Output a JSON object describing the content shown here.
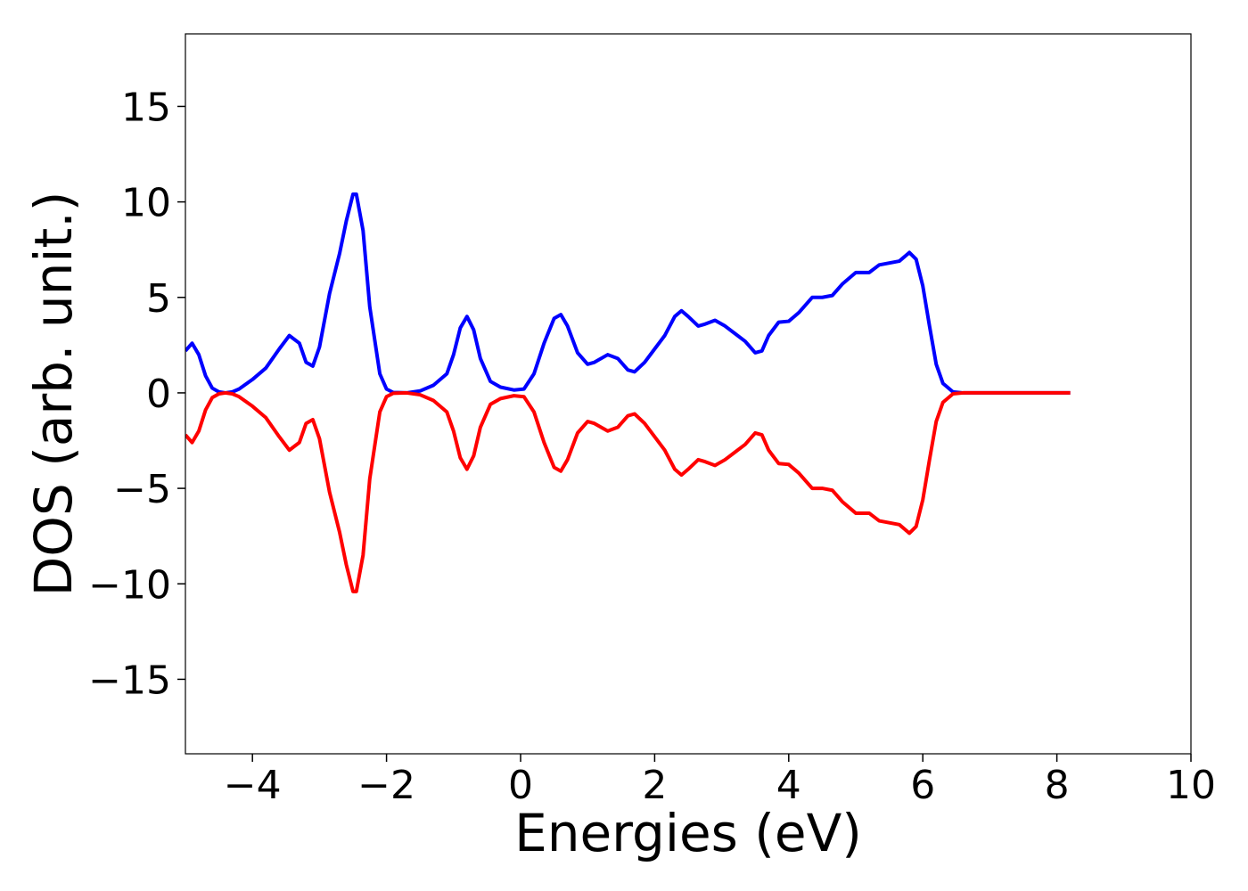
{
  "chart_data": {
    "type": "line",
    "xlabel": "Energies (eV)",
    "ylabel": "DOS (arb. unit.)",
    "x": [
      -5,
      -4.9,
      -4.8,
      -4.7,
      -4.6,
      -4.5,
      -4.4,
      -4.3,
      -4.2,
      -4.0,
      -3.8,
      -3.6,
      -3.45,
      -3.3,
      -3.2,
      -3.1,
      -3.0,
      -2.85,
      -2.7,
      -2.6,
      -2.5,
      -2.45,
      -2.35,
      -2.25,
      -2.1,
      -2.0,
      -1.9,
      -1.7,
      -1.5,
      -1.3,
      -1.1,
      -1.0,
      -0.9,
      -0.8,
      -0.7,
      -0.6,
      -0.45,
      -0.3,
      -0.1,
      0.05,
      0.2,
      0.35,
      0.5,
      0.6,
      0.7,
      0.85,
      1.0,
      1.1,
      1.3,
      1.45,
      1.6,
      1.7,
      1.85,
      2.0,
      2.15,
      2.3,
      2.4,
      2.5,
      2.65,
      2.75,
      2.9,
      3.05,
      3.2,
      3.35,
      3.5,
      3.6,
      3.7,
      3.85,
      4.0,
      4.15,
      4.35,
      4.5,
      4.65,
      4.8,
      5.0,
      5.2,
      5.35,
      5.5,
      5.65,
      5.8,
      5.9,
      6.0,
      6.1,
      6.2,
      6.3,
      6.45,
      6.6,
      8.2
    ],
    "series": [
      {
        "color": "#0000ff",
        "values": [
          2.2,
          2.6,
          2.0,
          0.9,
          0.25,
          0.05,
          0.0,
          0.05,
          0.2,
          0.7,
          1.3,
          2.3,
          3.0,
          2.6,
          1.6,
          1.4,
          2.4,
          5.2,
          7.3,
          9.0,
          10.4,
          10.4,
          8.5,
          4.5,
          1.0,
          0.2,
          0.02,
          0.0,
          0.1,
          0.4,
          1.0,
          2.0,
          3.4,
          4.0,
          3.3,
          1.8,
          0.6,
          0.3,
          0.15,
          0.2,
          1.0,
          2.6,
          3.9,
          4.1,
          3.5,
          2.1,
          1.5,
          1.6,
          2.0,
          1.8,
          1.2,
          1.1,
          1.6,
          2.3,
          3.0,
          4.0,
          4.3,
          4.0,
          3.5,
          3.6,
          3.8,
          3.5,
          3.1,
          2.7,
          2.1,
          2.2,
          3.0,
          3.7,
          3.75,
          4.2,
          5.0,
          5.0,
          5.1,
          5.7,
          6.3,
          6.3,
          6.7,
          6.8,
          6.9,
          7.35,
          7.0,
          5.6,
          3.5,
          1.5,
          0.5,
          0.05,
          0.0,
          0.0
        ]
      },
      {
        "color": "#ff0000",
        "values": [
          -2.2,
          -2.6,
          -2.0,
          -0.9,
          -0.25,
          -0.05,
          0.0,
          -0.05,
          -0.2,
          -0.7,
          -1.3,
          -2.3,
          -3.0,
          -2.6,
          -1.6,
          -1.4,
          -2.4,
          -5.2,
          -7.3,
          -9.0,
          -10.4,
          -10.4,
          -8.5,
          -4.5,
          -1.0,
          -0.2,
          -0.02,
          0.0,
          -0.1,
          -0.4,
          -1.0,
          -2.0,
          -3.4,
          -4.0,
          -3.3,
          -1.8,
          -0.6,
          -0.3,
          -0.15,
          -0.2,
          -1.0,
          -2.6,
          -3.9,
          -4.1,
          -3.5,
          -2.1,
          -1.5,
          -1.6,
          -2.0,
          -1.8,
          -1.2,
          -1.1,
          -1.6,
          -2.3,
          -3.0,
          -4.0,
          -4.3,
          -4.0,
          -3.5,
          -3.6,
          -3.8,
          -3.5,
          -3.1,
          -2.7,
          -2.1,
          -2.2,
          -3.0,
          -3.7,
          -3.75,
          -4.2,
          -5.0,
          -5.0,
          -5.1,
          -5.7,
          -6.3,
          -6.3,
          -6.7,
          -6.8,
          -6.9,
          -7.35,
          -7.0,
          -5.6,
          -3.5,
          -1.5,
          -0.5,
          -0.05,
          0.0,
          0.0
        ]
      }
    ],
    "xlim": [
      -5,
      10
    ],
    "xticks": [
      {
        "value": -4,
        "label": "−4"
      },
      {
        "value": -2,
        "label": "−2"
      },
      0,
      2,
      4,
      6,
      8,
      10
    ],
    "ylim": [
      -18.9,
      18.8
    ],
    "yticks": [
      {
        "value": -15,
        "label": "−15"
      },
      {
        "value": -10,
        "label": "−10"
      },
      {
        "value": -5,
        "label": "−5"
      },
      0,
      5,
      10,
      15
    ],
    "grid": false
  }
}
